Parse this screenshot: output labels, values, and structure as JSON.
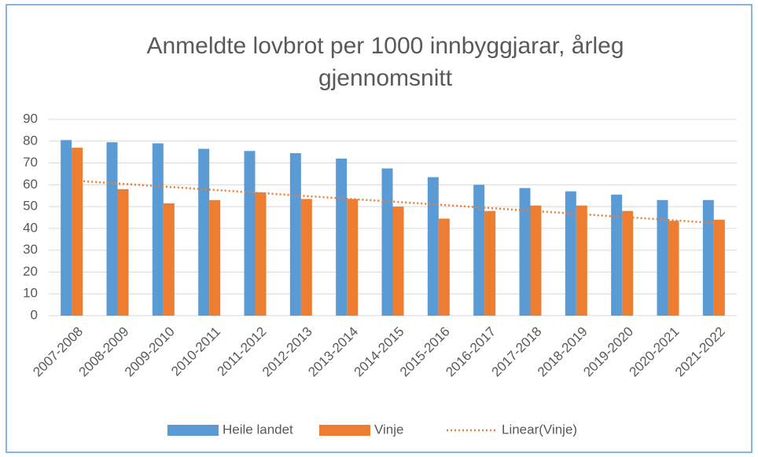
{
  "chart_data": {
    "type": "bar",
    "title": [
      "Anmeldte lovbrot per 1000 innbyggjarar, årleg",
      "gjennomsnitt"
    ],
    "categories": [
      "2007-2008",
      "2008-2009",
      "2009-2010",
      "2010-2011",
      "2011-2012",
      "2012-2013",
      "2013-2014",
      "2014-2015",
      "2015-2016",
      "2016-2017",
      "2017-2018",
      "2018-2019",
      "2019-2020",
      "2020-2021",
      "2021-2022"
    ],
    "series": [
      {
        "name": "Heile landet",
        "color": "#5b9bd5",
        "values": [
          80.5,
          79.5,
          79,
          76.5,
          75.5,
          74.5,
          72,
          67.5,
          63.5,
          60,
          58.5,
          57,
          55.5,
          53,
          53
        ]
      },
      {
        "name": "Vinje",
        "color": "#ed7d31",
        "values": [
          77,
          58,
          51.5,
          53,
          56.5,
          53.5,
          53.5,
          50,
          44.5,
          48,
          50.5,
          50.5,
          48,
          43.5,
          44
        ]
      },
      {
        "name": "Linear(Vinje)",
        "color": "#ed7d31",
        "type": "trendline",
        "values": [
          62,
          60.6,
          59.2,
          57.8,
          56.4,
          55,
          53.6,
          52.3,
          50.9,
          49.5,
          48.1,
          46.7,
          45.3,
          43.9,
          42.5
        ]
      }
    ],
    "ylim": [
      0,
      90
    ],
    "yticks": [
      0,
      10,
      20,
      30,
      40,
      50,
      60,
      70,
      80,
      90
    ],
    "grid": true,
    "legend": "bottom"
  }
}
